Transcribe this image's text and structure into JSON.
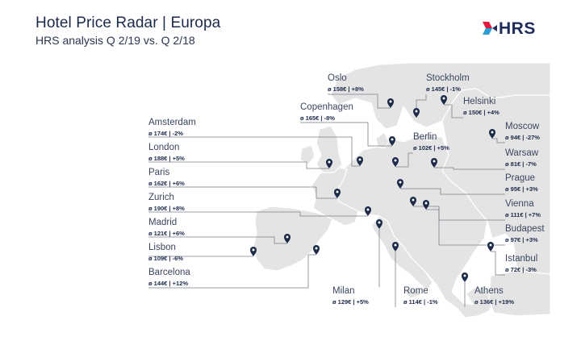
{
  "header": {
    "title": "Hotel Price Radar | Europa",
    "subtitle": "HRS analysis Q 2/19 vs. Q 2/18"
  },
  "logo": {
    "text": "HRS",
    "colors": {
      "primary": "#1f2b5a",
      "accent": "#e21b3c",
      "secondary": "#2a9fd6"
    }
  },
  "colors": {
    "land": "#e4e4e4",
    "border": "#ffffff",
    "leader": "#7a7f8c",
    "pin": "#1c2a4a"
  },
  "cities": [
    {
      "id": "amsterdam",
      "name": "Amsterdam",
      "stats": "ø 174€ | -2%"
    },
    {
      "id": "london",
      "name": "London",
      "stats": "ø 188€ | +5%"
    },
    {
      "id": "paris",
      "name": "Paris",
      "stats": "ø 162€ | +6%"
    },
    {
      "id": "zurich",
      "name": "Zurich",
      "stats": "ø 190€ | +8%"
    },
    {
      "id": "madrid",
      "name": "Madrid",
      "stats": "ø 121€ | +6%"
    },
    {
      "id": "lisbon",
      "name": "Lisbon",
      "stats": "ø 109€ | -6%"
    },
    {
      "id": "barcelona",
      "name": "Barcelona",
      "stats": "ø 144€ | +12%"
    },
    {
      "id": "oslo",
      "name": "Oslo",
      "stats": "ø 158€ | +8%"
    },
    {
      "id": "copenhagen",
      "name": "Copenhagen",
      "stats": "ø 165€ | -8%"
    },
    {
      "id": "stockholm",
      "name": "Stockholm",
      "stats": "ø 145€ | -1%"
    },
    {
      "id": "helsinki",
      "name": "Helsinki",
      "stats": "ø 150€ | +4%"
    },
    {
      "id": "berlin",
      "name": "Berlin",
      "stats": "ø 102€ | +5%"
    },
    {
      "id": "moscow",
      "name": "Moscow",
      "stats": "ø 94€ | -27%"
    },
    {
      "id": "warsaw",
      "name": "Warsaw",
      "stats": "ø 81€ | -7%"
    },
    {
      "id": "prague",
      "name": "Prague",
      "stats": "ø 95€ | +3%"
    },
    {
      "id": "vienna",
      "name": "Vienna",
      "stats": "ø 111€ | +7%"
    },
    {
      "id": "budapest",
      "name": "Budapest",
      "stats": "ø 97€ | +3%"
    },
    {
      "id": "istanbul",
      "name": "Istanbul",
      "stats": "ø 72€ | -3%"
    },
    {
      "id": "milan",
      "name": "Milan",
      "stats": "ø 129€ | +5%"
    },
    {
      "id": "rome",
      "name": "Rome",
      "stats": "ø 114€ | -1%"
    },
    {
      "id": "athens",
      "name": "Athens",
      "stats": "ø 136€ | +19%"
    }
  ]
}
